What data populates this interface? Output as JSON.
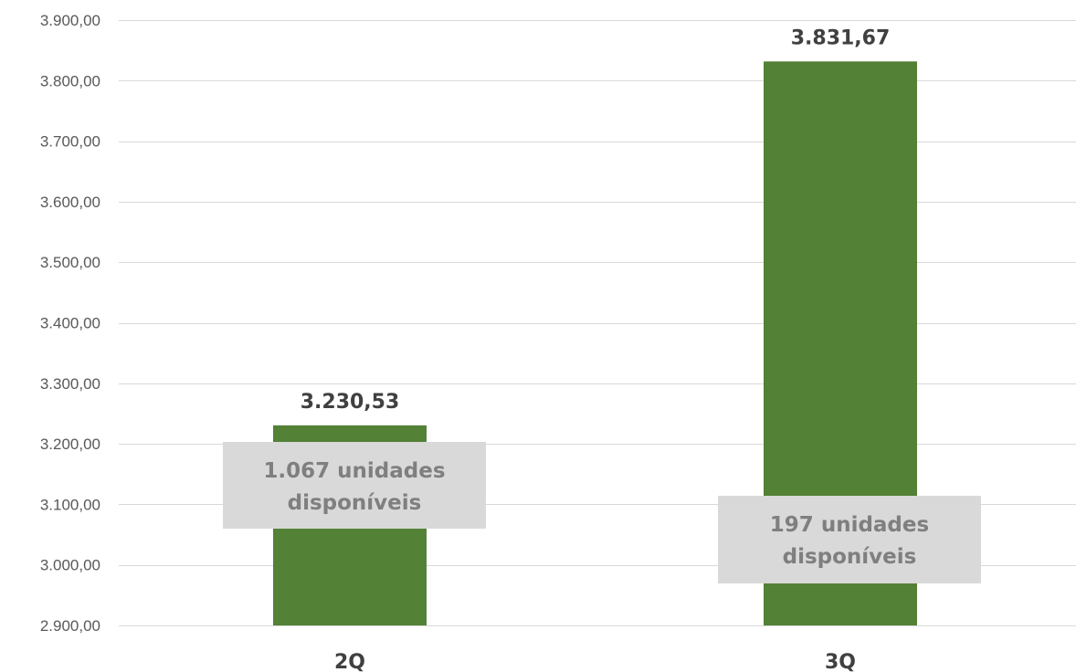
{
  "chart_data": {
    "type": "bar",
    "categories": [
      "2Q",
      "3Q"
    ],
    "values": [
      3230.53,
      3831.67
    ],
    "value_labels": [
      "3.230,53",
      "3.831,67"
    ],
    "ylim": [
      2900,
      3900
    ],
    "y_ticks": [
      2900,
      3000,
      3100,
      3200,
      3300,
      3400,
      3500,
      3600,
      3700,
      3800,
      3900
    ],
    "y_tick_labels": [
      "2.900,00",
      "3.000,00",
      "3.100,00",
      "3.200,00",
      "3.300,00",
      "3.400,00",
      "3.500,00",
      "3.600,00",
      "3.700,00",
      "3.800,00",
      "3.900,00"
    ],
    "grid": true,
    "legend": "none",
    "bar_color": "#538135",
    "grid_color": "#d9d9d9",
    "annotations": [
      {
        "lines": [
          "1.067 unidades",
          "disponíveis"
        ],
        "category": "2Q"
      },
      {
        "lines": [
          "197 unidades",
          "disponíveis"
        ],
        "category": "3Q"
      }
    ],
    "annotation_box_color": "#d9d9d9"
  }
}
